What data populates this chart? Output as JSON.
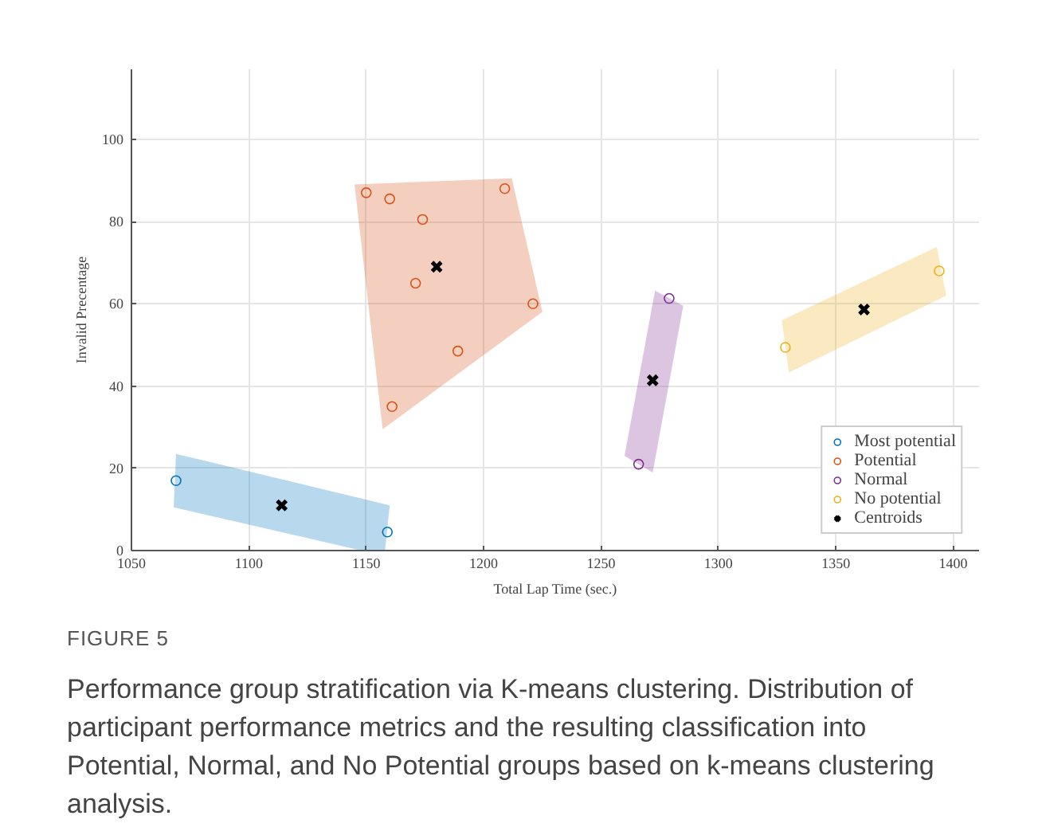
{
  "chart_data": {
    "type": "scatter",
    "xlabel": "Total Lap Time (sec.)",
    "ylabel": "Invalid Precentage",
    "xlim": [
      1050,
      1411
    ],
    "ylim": [
      0,
      117
    ],
    "xticks": [
      1050,
      1100,
      1150,
      1200,
      1250,
      1300,
      1350,
      1400
    ],
    "yticks": [
      0,
      20,
      40,
      60,
      80,
      100
    ],
    "grid": true,
    "legend": "bottom right",
    "marker": "circle",
    "series": [
      {
        "type": "area",
        "marker": "none",
        "color": "#0072bd",
        "x": [
          1069,
          1160,
          1158,
          1148,
          1068
        ],
        "values": [
          23.5,
          11,
          0,
          0,
          10.5
        ]
      },
      {
        "type": "area",
        "marker": "none",
        "color": "#d95319",
        "x": [
          1145,
          1212,
          1225,
          1157
        ],
        "values": [
          89,
          90.5,
          58,
          29.5
        ]
      },
      {
        "type": "area",
        "marker": "none",
        "color": "#7e2f8e",
        "x": [
          1273,
          1285,
          1272,
          1260
        ],
        "values": [
          63.2,
          59.5,
          19,
          23
        ]
      },
      {
        "type": "area",
        "marker": "none",
        "color": "#edb120",
        "x": [
          1327,
          1393,
          1397,
          1330
        ],
        "values": [
          56,
          73.8,
          62,
          43.3
        ]
      },
      {
        "name": "Most potential",
        "color": "#0072bd",
        "x": [
          1069,
          1159
        ],
        "values": [
          17,
          4.5
        ]
      },
      {
        "name": "Potential",
        "color": "#d95319",
        "x": [
          1150,
          1160,
          1174,
          1209,
          1171,
          1221,
          1189,
          1161
        ],
        "values": [
          87,
          85.5,
          80.5,
          88,
          65,
          60,
          48.5,
          35
        ]
      },
      {
        "name": "Normal",
        "color": "#7e2f8e",
        "x": [
          1279,
          1266
        ],
        "values": [
          61.3,
          21
        ]
      },
      {
        "name": "No potential",
        "color": "#edb120",
        "x": [
          1328.5,
          1394
        ],
        "values": [
          49.4,
          68
        ]
      },
      {
        "name": "Centroids",
        "color": "#000000",
        "marker": "cross",
        "x": [
          1114,
          1180,
          1272,
          1362
        ],
        "values": [
          11,
          69,
          41.4,
          58.6
        ]
      }
    ],
    "annotations": [
      "FIGURE 5",
      "Performance group stratification via K-means clustering. Distribution of participant performance metrics and the resulting classification into Potential, Normal, and No Potential groups based on k-means clustering analysis."
    ]
  }
}
